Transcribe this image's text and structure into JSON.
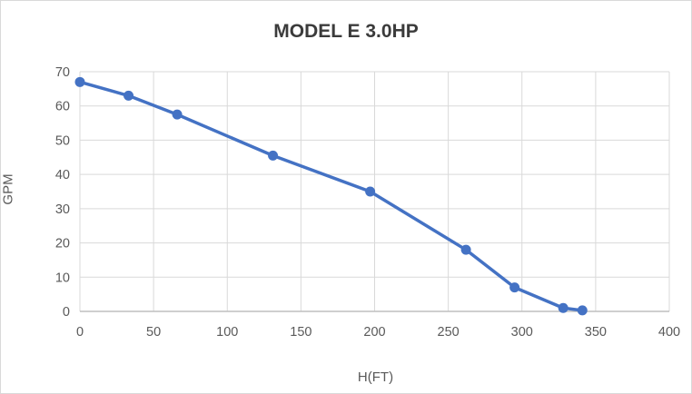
{
  "chart": {
    "title": "MODEL E 3.0HP",
    "x_axis_title": "H(FT)",
    "y_axis_title": "GPM"
  },
  "chart_data": {
    "type": "line",
    "title": "MODEL E 3.0HP",
    "xlabel": "H(FT)",
    "ylabel": "GPM",
    "series": [
      {
        "name": "MODEL E 3.0HP",
        "x": [
          0,
          33,
          66,
          131,
          197,
          262,
          295,
          328,
          341
        ],
        "y": [
          67,
          63,
          57.5,
          45.5,
          35,
          18,
          7,
          1,
          0.3
        ]
      }
    ],
    "xlim": [
      0,
      400
    ],
    "ylim": [
      0,
      70
    ],
    "x_ticks": [
      0,
      50,
      100,
      150,
      200,
      250,
      300,
      350,
      400
    ],
    "y_ticks": [
      0,
      10,
      20,
      30,
      40,
      50,
      60,
      70
    ],
    "grid": true,
    "legend": "none",
    "colors": {
      "series": "#4472c4",
      "gridline": "#d9d9d9",
      "axis_line": "#bfbfbf",
      "tick_label": "#595959",
      "title": "#3b3b3b"
    }
  }
}
